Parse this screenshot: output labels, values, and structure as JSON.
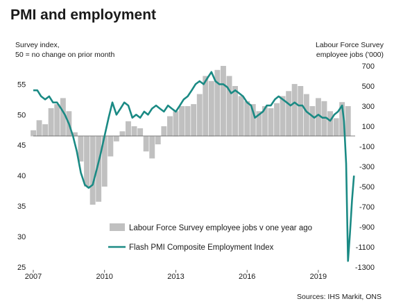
{
  "title": "PMI and employment",
  "left_axis_label_lines": [
    "Survey index,",
    "50 = no change on prior month"
  ],
  "right_axis_label_lines": [
    "Labour Force Survey",
    "employee jobs  ('000)"
  ],
  "source": "Sources: IHS Markit, ONS",
  "colors": {
    "bars": "#c0c0c0",
    "line": "#1a8a84"
  },
  "chart_data": {
    "type": "bar+line",
    "x_ticks": [
      "2007",
      "2010",
      "2013",
      "2016",
      "2019"
    ],
    "x_range": [
      2007.0,
      2020.55
    ],
    "left_axis": {
      "ylim": [
        25,
        58
      ],
      "ticks": [
        25,
        30,
        35,
        40,
        45,
        50,
        55
      ]
    },
    "right_axis": {
      "ylim": [
        -1300,
        700
      ],
      "ticks": [
        -1300,
        -1100,
        -900,
        -700,
        -500,
        -300,
        -100,
        100,
        300,
        500,
        700
      ]
    },
    "series": [
      {
        "name": "Labour Force Survey employee jobs v one year ago",
        "type": "bar",
        "axis": "right",
        "x": [
          2007.0,
          2007.25,
          2007.5,
          2007.75,
          2008.0,
          2008.25,
          2008.5,
          2008.75,
          2009.0,
          2009.25,
          2009.5,
          2009.75,
          2010.0,
          2010.25,
          2010.5,
          2010.75,
          2011.0,
          2011.25,
          2011.5,
          2011.75,
          2012.0,
          2012.25,
          2012.5,
          2012.75,
          2013.0,
          2013.25,
          2013.5,
          2013.75,
          2014.0,
          2014.25,
          2014.5,
          2014.75,
          2015.0,
          2015.25,
          2015.5,
          2015.75,
          2016.0,
          2016.25,
          2016.5,
          2016.75,
          2017.0,
          2017.25,
          2017.5,
          2017.75,
          2018.0,
          2018.25,
          2018.5,
          2018.75,
          2019.0,
          2019.25,
          2019.5,
          2019.75,
          2020.0,
          2020.25
        ],
        "values": [
          60,
          160,
          120,
          280,
          320,
          380,
          250,
          40,
          -250,
          -500,
          -680,
          -650,
          -500,
          -200,
          -50,
          50,
          150,
          100,
          80,
          -150,
          -220,
          -80,
          100,
          200,
          250,
          300,
          300,
          320,
          420,
          600,
          550,
          660,
          700,
          600,
          500,
          400,
          350,
          320,
          250,
          300,
          280,
          330,
          400,
          450,
          520,
          500,
          420,
          300,
          380,
          350,
          250,
          180,
          340,
          300
        ]
      },
      {
        "name": "Flash PMI Composite Employment Index",
        "type": "line",
        "axis": "left",
        "x": [
          2007.0,
          2007.17,
          2007.33,
          2007.5,
          2007.67,
          2007.83,
          2008.0,
          2008.17,
          2008.33,
          2008.5,
          2008.67,
          2008.83,
          2009.0,
          2009.17,
          2009.33,
          2009.5,
          2009.67,
          2009.83,
          2010.0,
          2010.17,
          2010.33,
          2010.5,
          2010.67,
          2010.83,
          2011.0,
          2011.17,
          2011.33,
          2011.5,
          2011.67,
          2011.83,
          2012.0,
          2012.17,
          2012.33,
          2012.5,
          2012.67,
          2012.83,
          2013.0,
          2013.17,
          2013.33,
          2013.5,
          2013.67,
          2013.83,
          2014.0,
          2014.17,
          2014.33,
          2014.5,
          2014.67,
          2014.83,
          2015.0,
          2015.17,
          2015.33,
          2015.5,
          2015.67,
          2015.83,
          2016.0,
          2016.17,
          2016.33,
          2016.5,
          2016.67,
          2016.83,
          2017.0,
          2017.17,
          2017.33,
          2017.5,
          2017.67,
          2017.83,
          2018.0,
          2018.17,
          2018.33,
          2018.5,
          2018.67,
          2018.83,
          2019.0,
          2019.17,
          2019.33,
          2019.5,
          2019.67,
          2019.83,
          2020.0,
          2020.08,
          2020.17,
          2020.25,
          2020.33,
          2020.42,
          2020.5
        ],
        "values": [
          54.0,
          54.0,
          53.0,
          52.5,
          53.0,
          52.0,
          52.0,
          51.0,
          50.0,
          48.5,
          46.5,
          44.0,
          40.5,
          38.5,
          38.0,
          38.5,
          41.0,
          43.5,
          46.5,
          49.5,
          52.0,
          50.0,
          51.0,
          52.0,
          51.5,
          49.5,
          50.0,
          49.5,
          50.5,
          50.0,
          51.0,
          51.5,
          51.0,
          50.5,
          51.5,
          51.0,
          50.5,
          51.5,
          52.5,
          53.0,
          54.0,
          55.0,
          55.5,
          55.0,
          56.0,
          57.0,
          55.5,
          55.0,
          55.0,
          54.5,
          53.5,
          54.0,
          53.5,
          53.0,
          52.0,
          51.5,
          49.5,
          50.0,
          50.5,
          51.5,
          51.5,
          52.5,
          53.0,
          52.5,
          52.0,
          51.5,
          52.0,
          51.5,
          51.5,
          50.5,
          50.0,
          49.5,
          50.0,
          49.5,
          49.5,
          49.0,
          50.0,
          50.5,
          51.5,
          49.0,
          42.0,
          26.0,
          30.5,
          36.0,
          40.0
        ]
      }
    ],
    "legend_position": "bottom-center"
  }
}
